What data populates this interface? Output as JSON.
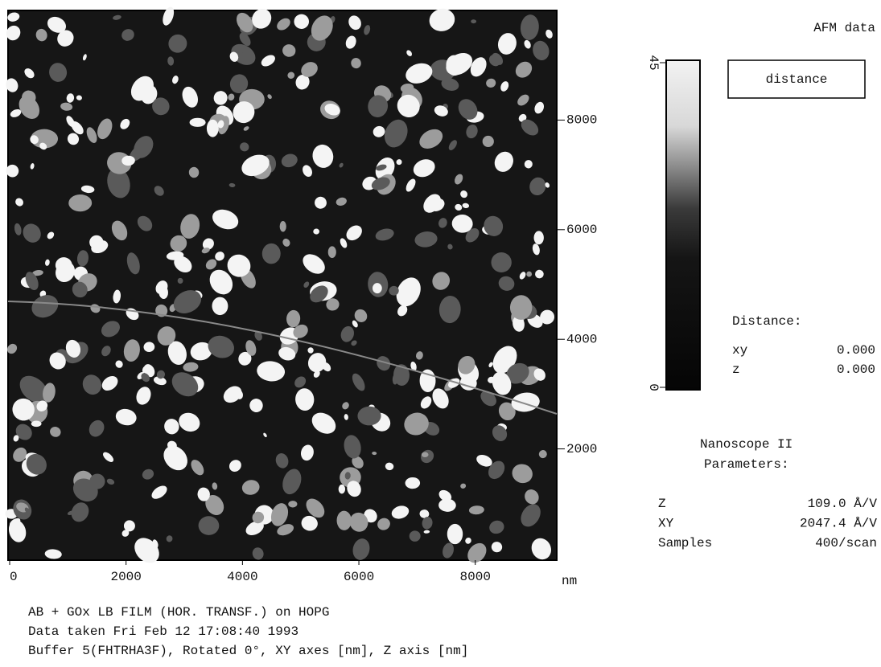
{
  "scan": {
    "xlim": [
      0,
      9400
    ],
    "ylim": [
      0,
      10000
    ],
    "xticks": [
      0,
      2000,
      4000,
      6000,
      8000
    ],
    "yticks": [
      2000,
      4000,
      6000,
      8000
    ],
    "unit": "nm"
  },
  "colorbar": {
    "ticks": [
      0,
      45
    ]
  },
  "panel": {
    "title": "AFM data",
    "mode_button": "distance",
    "distance_heading": "Distance:",
    "distance_rows": [
      [
        "xy",
        "0.000"
      ],
      [
        "z",
        "0.000"
      ]
    ],
    "params_heading": [
      "Nanoscope II",
      "Parameters:"
    ],
    "param_rows": [
      [
        "Z",
        "109.0 Å/V"
      ],
      [
        "XY",
        "2047.4 Å/V"
      ],
      [
        "Samples",
        "400/scan"
      ]
    ]
  },
  "caption": [
    "AB + GOx LB FILM (HOR. TRANSF.) on HOPG",
    "Data taken Fri Feb 12 17:08:40 1993",
    "Buffer 5(FHTRHA3F), Rotated 0°, XY axes [nm], Z axis [nm]"
  ]
}
